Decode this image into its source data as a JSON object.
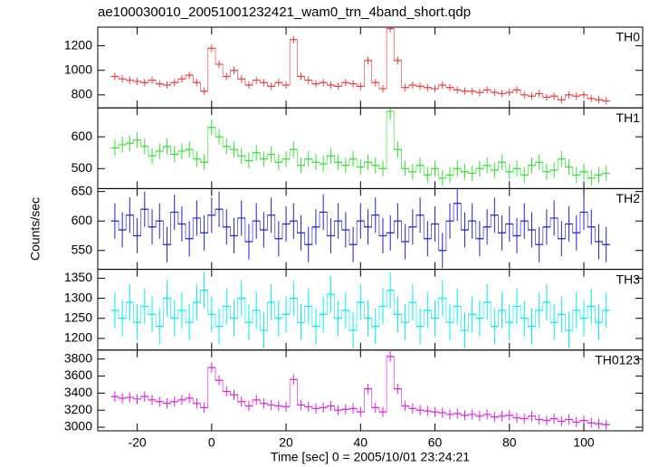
{
  "chart_data": {
    "type": "line",
    "title": "ae100030010_20051001232421_wam0_trn_4band_short.qdp",
    "xlabel": "Time [sec] 0 = 2005/10/01 23:24:21",
    "ylabel": "Counts/sec",
    "xlim": [
      -30.6,
      115.8
    ],
    "xticks": [
      -20,
      0,
      20,
      40,
      60,
      80,
      100
    ],
    "x": [
      -26,
      -24,
      -22,
      -20,
      -18,
      -16,
      -14,
      -12,
      -10,
      -8,
      -6,
      -4,
      -2,
      0,
      2,
      4,
      6,
      8,
      10,
      12,
      14,
      16,
      18,
      20,
      22,
      24,
      26,
      28,
      30,
      32,
      34,
      36,
      38,
      40,
      42,
      44,
      46,
      48,
      50,
      52,
      54,
      56,
      58,
      60,
      62,
      64,
      66,
      68,
      70,
      72,
      74,
      76,
      78,
      80,
      82,
      84,
      86,
      88,
      90,
      92,
      94,
      96,
      98,
      100,
      102,
      104,
      106
    ],
    "panels": [
      {
        "name": "TH0",
        "color": "#f03c3c",
        "ylim": [
          694,
          1352
        ],
        "yticks": [
          800,
          1000,
          1200
        ],
        "error": 30,
        "values": [
          950,
          930,
          920,
          910,
          900,
          920,
          890,
          880,
          900,
          930,
          960,
          900,
          830,
          1180,
          1050,
          950,
          1000,
          930,
          880,
          920,
          900,
          870,
          900,
          880,
          1250,
          950,
          920,
          890,
          900,
          880,
          870,
          900,
          890,
          870,
          1080,
          900,
          850,
          1340,
          1080,
          860,
          880,
          870,
          860,
          850,
          880,
          860,
          840,
          830,
          830,
          820,
          840,
          820,
          810,
          820,
          840,
          800,
          790,
          810,
          780,
          790,
          760,
          800,
          790,
          800,
          770,
          760,
          750
        ]
      },
      {
        "name": "TH1",
        "color": "#33e033",
        "ylim": [
          437,
          691
        ],
        "yticks": [
          500,
          600
        ],
        "error": 25,
        "values": [
          565,
          575,
          580,
          590,
          570,
          540,
          555,
          570,
          545,
          555,
          560,
          530,
          520,
          630,
          600,
          570,
          560,
          540,
          525,
          550,
          530,
          545,
          520,
          530,
          560,
          510,
          530,
          520,
          515,
          540,
          520,
          510,
          530,
          505,
          520,
          510,
          500,
          680,
          560,
          500,
          490,
          510,
          480,
          500,
          470,
          480,
          500,
          490,
          485,
          500,
          510,
          495,
          520,
          490,
          500,
          480,
          510,
          520,
          490,
          495,
          530,
          505,
          480,
          490,
          470,
          480,
          485
        ]
      },
      {
        "name": "TH2",
        "color": "#2222cc",
        "ylim": [
          518,
          655
        ],
        "yticks": [
          550,
          600,
          650
        ],
        "error": 30,
        "values": [
          600,
          585,
          610,
          575,
          620,
          590,
          600,
          560,
          615,
          595,
          570,
          605,
          580,
          610,
          620,
          590,
          575,
          605,
          565,
          600,
          585,
          610,
          570,
          595,
          600,
          580,
          560,
          590,
          615,
          575,
          600,
          585,
          560,
          600,
          590,
          610,
          575,
          580,
          600,
          565,
          590,
          610,
          570,
          595,
          550,
          600,
          630,
          585,
          600,
          570,
          590,
          610,
          580,
          595,
          575,
          600,
          585,
          560,
          590,
          605,
          570,
          595,
          580,
          615,
          590,
          565,
          560
        ]
      },
      {
        "name": "TH3",
        "color": "#00eeee",
        "ylim": [
          1171,
          1372
        ],
        "yticks": [
          1200,
          1250,
          1300,
          1350
        ],
        "error": 45,
        "values": [
          1270,
          1250,
          1290,
          1240,
          1280,
          1260,
          1230,
          1300,
          1250,
          1270,
          1240,
          1290,
          1320,
          1260,
          1230,
          1280,
          1250,
          1300,
          1240,
          1270,
          1220,
          1290,
          1250,
          1260,
          1300,
          1240,
          1280,
          1230,
          1260,
          1310,
          1250,
          1270,
          1220,
          1290,
          1250,
          1230,
          1280,
          1320,
          1260,
          1240,
          1290,
          1230,
          1270,
          1250,
          1300,
          1240,
          1280,
          1220,
          1260,
          1250,
          1290,
          1230,
          1270,
          1240,
          1280,
          1250,
          1230,
          1270,
          1290,
          1240,
          1260,
          1220,
          1270,
          1250,
          1280,
          1240,
          1270
        ]
      },
      {
        "name": "TH0123",
        "color": "#e020e0",
        "ylim": [
          2958,
          3905
        ],
        "yticks": [
          3000,
          3200,
          3400,
          3600,
          3800
        ],
        "error": 60,
        "values": [
          3360,
          3340,
          3350,
          3330,
          3360,
          3320,
          3300,
          3280,
          3300,
          3320,
          3340,
          3280,
          3230,
          3700,
          3550,
          3420,
          3380,
          3300,
          3250,
          3320,
          3280,
          3260,
          3250,
          3240,
          3560,
          3260,
          3240,
          3220,
          3230,
          3250,
          3200,
          3210,
          3220,
          3180,
          3450,
          3230,
          3180,
          3830,
          3450,
          3250,
          3220,
          3200,
          3190,
          3180,
          3170,
          3150,
          3160,
          3140,
          3150,
          3130,
          3150,
          3120,
          3130,
          3140,
          3110,
          3100,
          3130,
          3090,
          3080,
          3100,
          3070,
          3090,
          3060,
          3080,
          3050,
          3040,
          3030
        ]
      }
    ]
  }
}
